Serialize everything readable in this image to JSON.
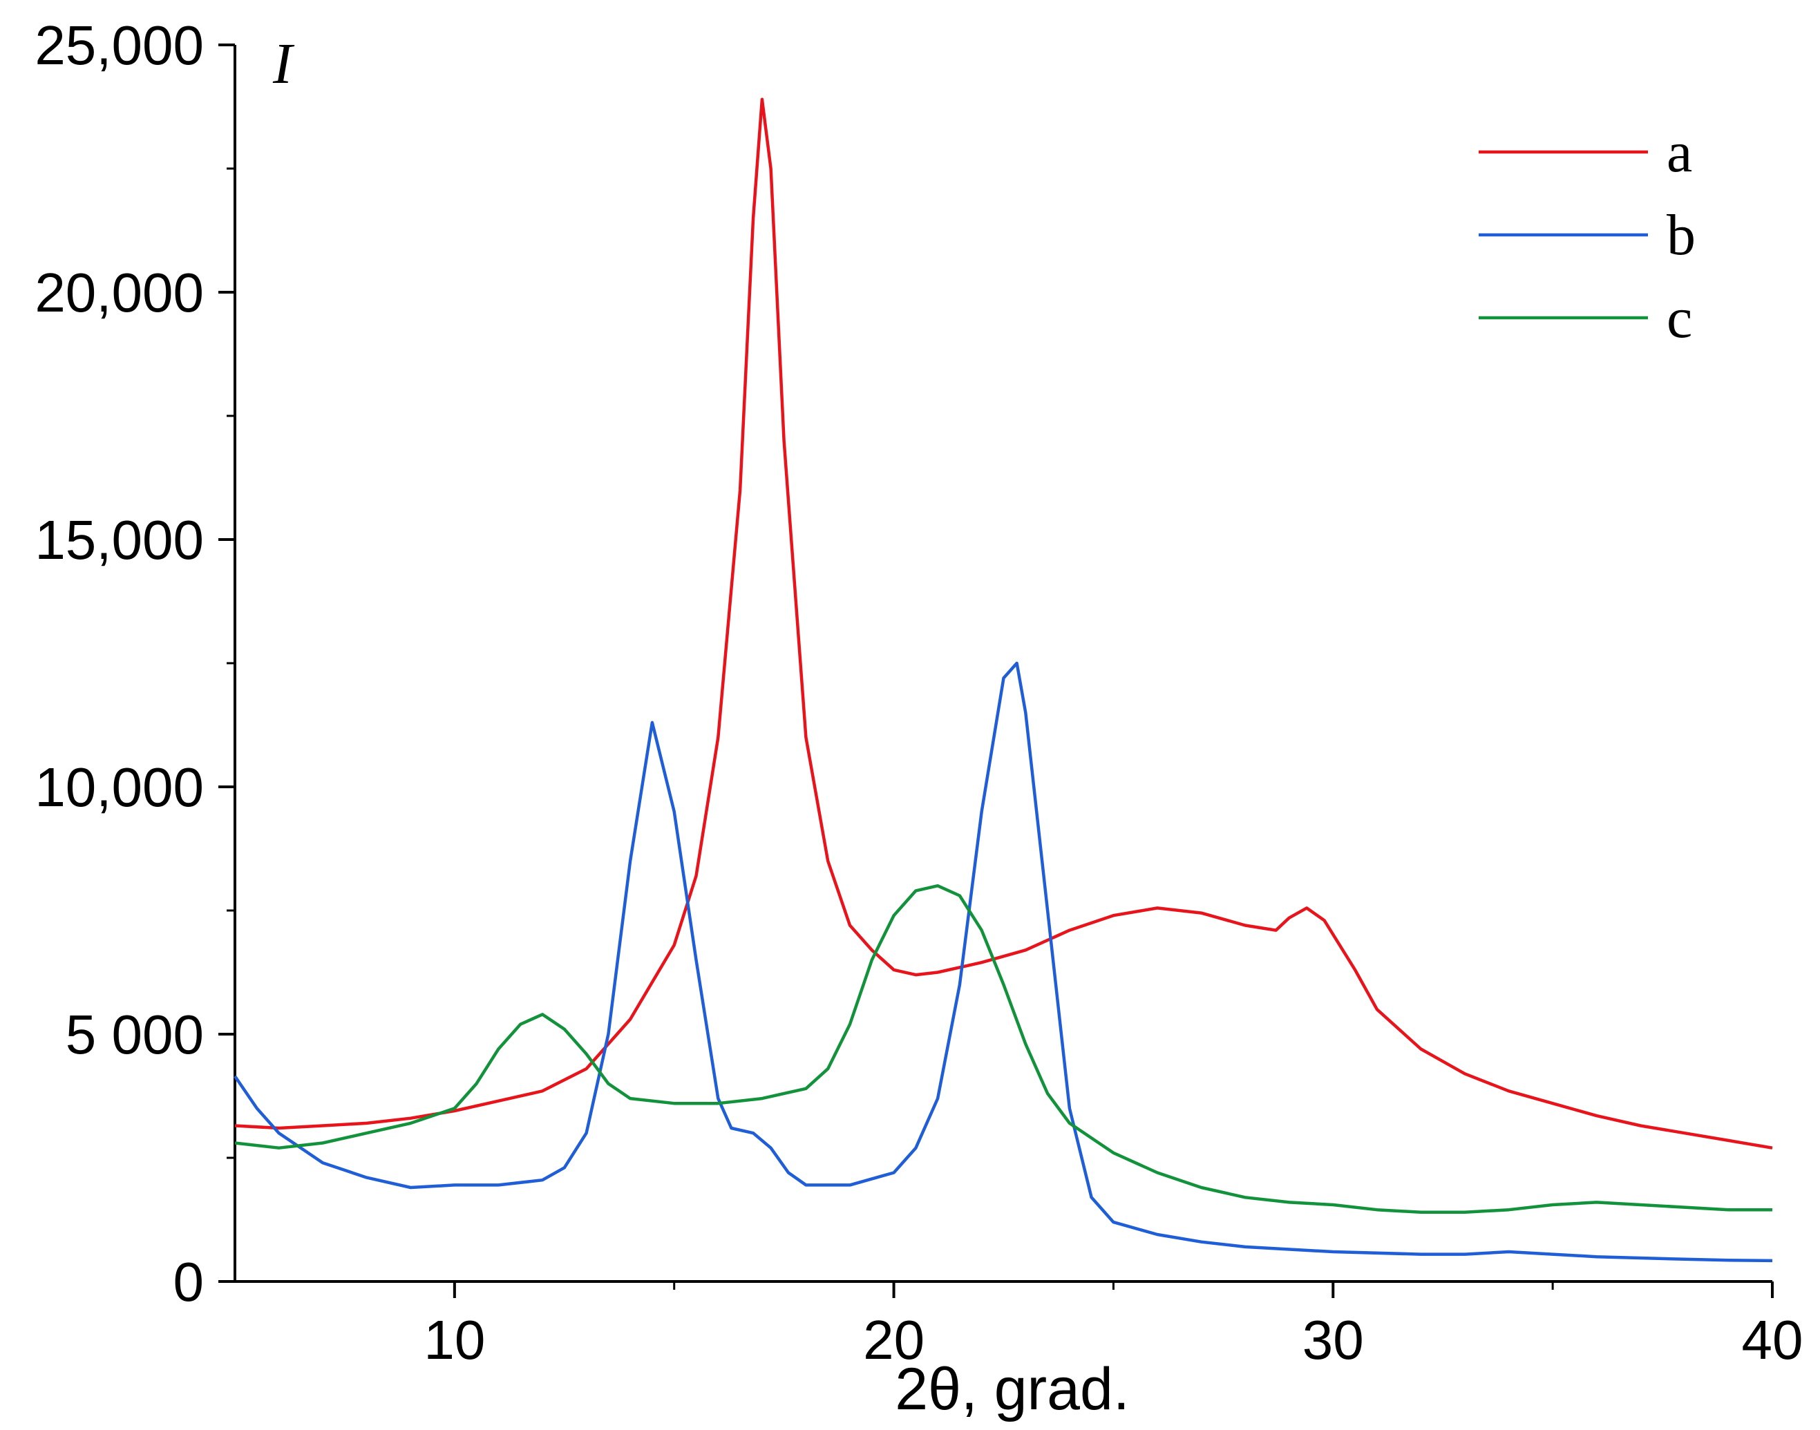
{
  "chart_data": {
    "type": "line",
    "title": "",
    "xlabel": "2θ, grad.",
    "ylabel": "I",
    "xlim": [
      5,
      40
    ],
    "ylim": [
      0,
      25000
    ],
    "x_ticks": [
      10,
      20,
      30,
      40
    ],
    "x_tick_labels": [
      "10",
      "20",
      "30",
      "40"
    ],
    "y_ticks": [
      0,
      5000,
      10000,
      15000,
      20000,
      25000
    ],
    "y_tick_labels": [
      "0",
      "5 000",
      "10,000",
      "15,000",
      "20,000",
      "25,000"
    ],
    "grid": false,
    "legend_position": "top-right",
    "series": [
      {
        "name": "a",
        "color": "#e8141c",
        "points": [
          [
            5,
            3150
          ],
          [
            6,
            3100
          ],
          [
            7,
            3150
          ],
          [
            8,
            3200
          ],
          [
            9,
            3300
          ],
          [
            10,
            3450
          ],
          [
            11,
            3650
          ],
          [
            12,
            3850
          ],
          [
            13,
            4300
          ],
          [
            14,
            5300
          ],
          [
            15,
            6800
          ],
          [
            15.5,
            8200
          ],
          [
            16,
            11000
          ],
          [
            16.5,
            16000
          ],
          [
            16.8,
            21500
          ],
          [
            17,
            23900
          ],
          [
            17.2,
            22500
          ],
          [
            17.5,
            17000
          ],
          [
            18,
            11000
          ],
          [
            18.5,
            8500
          ],
          [
            19,
            7200
          ],
          [
            19.5,
            6700
          ],
          [
            20,
            6300
          ],
          [
            20.5,
            6200
          ],
          [
            21,
            6250
          ],
          [
            22,
            6450
          ],
          [
            23,
            6700
          ],
          [
            24,
            7100
          ],
          [
            25,
            7400
          ],
          [
            26,
            7550
          ],
          [
            27,
            7450
          ],
          [
            28,
            7200
          ],
          [
            28.7,
            7100
          ],
          [
            29,
            7350
          ],
          [
            29.4,
            7550
          ],
          [
            29.8,
            7300
          ],
          [
            30.5,
            6300
          ],
          [
            31,
            5500
          ],
          [
            32,
            4700
          ],
          [
            33,
            4200
          ],
          [
            34,
            3850
          ],
          [
            35,
            3600
          ],
          [
            36,
            3350
          ],
          [
            37,
            3150
          ],
          [
            38,
            3000
          ],
          [
            39,
            2850
          ],
          [
            40,
            2700
          ]
        ]
      },
      {
        "name": "b",
        "color": "#1f5ed6",
        "points": [
          [
            5,
            4150
          ],
          [
            5.5,
            3500
          ],
          [
            6,
            3000
          ],
          [
            7,
            2400
          ],
          [
            8,
            2100
          ],
          [
            9,
            1900
          ],
          [
            10,
            1950
          ],
          [
            11,
            1950
          ],
          [
            12,
            2050
          ],
          [
            12.5,
            2300
          ],
          [
            13,
            3000
          ],
          [
            13.5,
            5000
          ],
          [
            14,
            8500
          ],
          [
            14.5,
            11300
          ],
          [
            15,
            9500
          ],
          [
            15.5,
            6500
          ],
          [
            16,
            3700
          ],
          [
            16.3,
            3100
          ],
          [
            16.8,
            3000
          ],
          [
            17.2,
            2700
          ],
          [
            17.6,
            2200
          ],
          [
            18,
            1950
          ],
          [
            19,
            1950
          ],
          [
            20,
            2200
          ],
          [
            20.5,
            2700
          ],
          [
            21,
            3700
          ],
          [
            21.5,
            6000
          ],
          [
            22,
            9500
          ],
          [
            22.5,
            12200
          ],
          [
            22.8,
            12500
          ],
          [
            23,
            11500
          ],
          [
            23.5,
            7500
          ],
          [
            24,
            3500
          ],
          [
            24.5,
            1700
          ],
          [
            25,
            1200
          ],
          [
            26,
            950
          ],
          [
            27,
            800
          ],
          [
            28,
            700
          ],
          [
            30,
            600
          ],
          [
            32,
            550
          ],
          [
            33,
            550
          ],
          [
            34,
            600
          ],
          [
            35,
            550
          ],
          [
            36,
            500
          ],
          [
            38,
            450
          ],
          [
            39,
            430
          ],
          [
            40,
            420
          ]
        ]
      },
      {
        "name": "c",
        "color": "#13923c",
        "points": [
          [
            5,
            2800
          ],
          [
            6,
            2700
          ],
          [
            7,
            2800
          ],
          [
            8,
            3000
          ],
          [
            9,
            3200
          ],
          [
            10,
            3500
          ],
          [
            10.5,
            4000
          ],
          [
            11,
            4700
          ],
          [
            11.5,
            5200
          ],
          [
            12,
            5400
          ],
          [
            12.5,
            5100
          ],
          [
            13,
            4600
          ],
          [
            13.5,
            4000
          ],
          [
            14,
            3700
          ],
          [
            15,
            3600
          ],
          [
            16,
            3600
          ],
          [
            17,
            3700
          ],
          [
            18,
            3900
          ],
          [
            18.5,
            4300
          ],
          [
            19,
            5200
          ],
          [
            19.5,
            6500
          ],
          [
            20,
            7400
          ],
          [
            20.5,
            7900
          ],
          [
            21,
            8000
          ],
          [
            21.5,
            7800
          ],
          [
            22,
            7100
          ],
          [
            22.5,
            6000
          ],
          [
            23,
            4800
          ],
          [
            23.5,
            3800
          ],
          [
            24,
            3200
          ],
          [
            25,
            2600
          ],
          [
            26,
            2200
          ],
          [
            27,
            1900
          ],
          [
            28,
            1700
          ],
          [
            29,
            1600
          ],
          [
            30,
            1550
          ],
          [
            31,
            1450
          ],
          [
            32,
            1400
          ],
          [
            33,
            1400
          ],
          [
            34,
            1450
          ],
          [
            35,
            1550
          ],
          [
            36,
            1600
          ],
          [
            37,
            1550
          ],
          [
            38,
            1500
          ],
          [
            39,
            1450
          ],
          [
            40,
            1450
          ]
        ]
      }
    ]
  }
}
